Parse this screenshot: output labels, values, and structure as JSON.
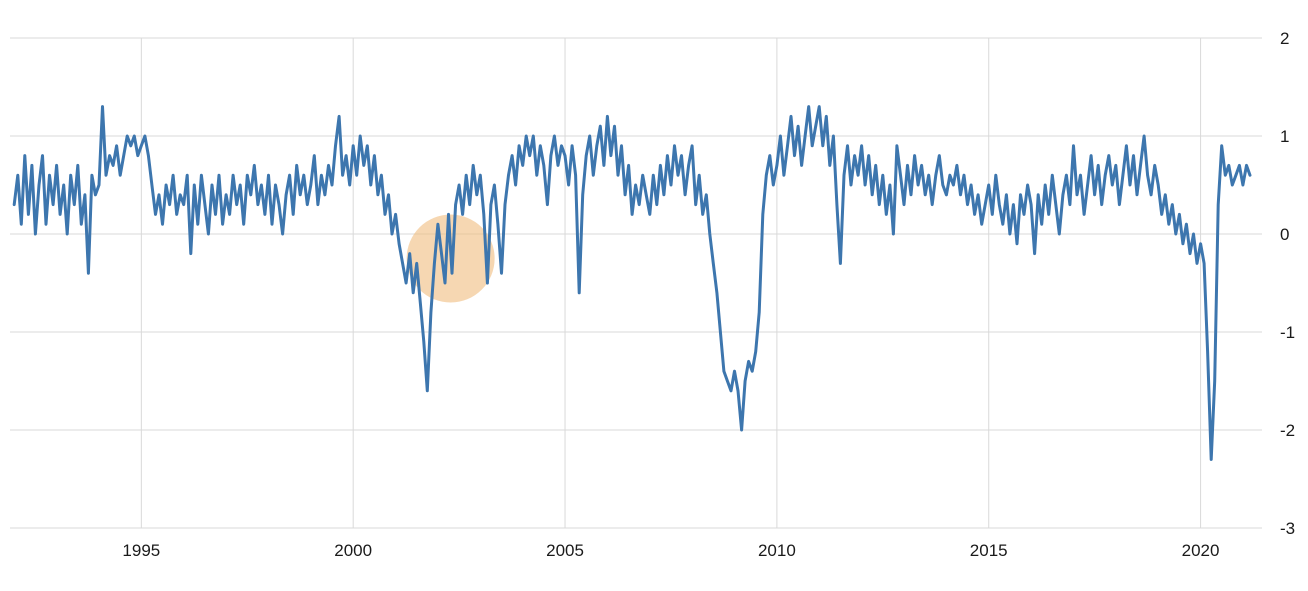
{
  "chart_data": {
    "type": "line",
    "title": "",
    "xlabel": "",
    "ylabel": "",
    "frequency": "monthly",
    "start_year": 1992,
    "start_month": 1,
    "xlim": [
      1991.9,
      2021.45
    ],
    "ylim": [
      -3,
      2
    ],
    "x_tick_labels": [
      "1995",
      "2000",
      "2005",
      "2010",
      "2015",
      "2020"
    ],
    "x_tick_values": [
      1995,
      2000,
      2005,
      2010,
      2015,
      2020
    ],
    "y_tick_labels": [
      "2",
      "1",
      "0",
      "-1",
      "-2",
      "-3"
    ],
    "y_tick_values": [
      2,
      1,
      0,
      -1,
      -2,
      -3
    ],
    "grid": true,
    "legend": false,
    "colors": {
      "line": "#3d76ae",
      "grid": "#d9d9d9",
      "background": "#ffffff",
      "tick_text": "#1a1a1a",
      "highlight": "#f0bc7e"
    },
    "annotations": [
      {
        "type": "highlight-circle",
        "x": 2002.3,
        "y": -0.25,
        "radius_px": 44,
        "color": "#f0bc7e",
        "opacity": 0.6
      }
    ],
    "series": [
      {
        "name": "value",
        "color": "#3d76ae",
        "values": [
          0.3,
          0.6,
          0.1,
          0.8,
          0.2,
          0.7,
          0.0,
          0.5,
          0.8,
          0.1,
          0.6,
          0.3,
          0.7,
          0.2,
          0.5,
          0.0,
          0.6,
          0.3,
          0.7,
          0.1,
          0.4,
          -0.4,
          0.6,
          0.4,
          0.5,
          1.3,
          0.6,
          0.8,
          0.7,
          0.9,
          0.6,
          0.8,
          1.0,
          0.9,
          1.0,
          0.8,
          0.9,
          1.0,
          0.8,
          0.5,
          0.2,
          0.4,
          0.1,
          0.5,
          0.3,
          0.6,
          0.2,
          0.4,
          0.3,
          0.6,
          -0.2,
          0.5,
          0.1,
          0.6,
          0.3,
          0.0,
          0.5,
          0.2,
          0.6,
          0.1,
          0.4,
          0.2,
          0.6,
          0.3,
          0.5,
          0.1,
          0.6,
          0.4,
          0.7,
          0.3,
          0.5,
          0.2,
          0.6,
          0.1,
          0.5,
          0.3,
          0.0,
          0.4,
          0.6,
          0.2,
          0.7,
          0.4,
          0.6,
          0.3,
          0.5,
          0.8,
          0.3,
          0.6,
          0.4,
          0.7,
          0.5,
          0.9,
          1.2,
          0.6,
          0.8,
          0.5,
          0.9,
          0.6,
          1.0,
          0.7,
          0.9,
          0.5,
          0.8,
          0.4,
          0.6,
          0.2,
          0.4,
          0.0,
          0.2,
          -0.1,
          -0.3,
          -0.5,
          -0.2,
          -0.6,
          -0.3,
          -0.7,
          -1.1,
          -1.6,
          -0.8,
          -0.3,
          0.1,
          -0.2,
          -0.5,
          0.2,
          -0.4,
          0.3,
          0.5,
          0.2,
          0.6,
          0.3,
          0.7,
          0.4,
          0.6,
          0.2,
          -0.5,
          0.3,
          0.5,
          0.1,
          -0.4,
          0.3,
          0.6,
          0.8,
          0.5,
          0.9,
          0.7,
          1.0,
          0.8,
          1.0,
          0.6,
          0.9,
          0.7,
          0.3,
          0.8,
          1.0,
          0.7,
          0.9,
          0.8,
          0.5,
          0.9,
          0.6,
          -0.6,
          0.4,
          0.8,
          1.0,
          0.6,
          0.9,
          1.1,
          0.7,
          1.2,
          0.8,
          1.1,
          0.6,
          0.9,
          0.4,
          0.7,
          0.2,
          0.5,
          0.3,
          0.6,
          0.4,
          0.2,
          0.6,
          0.3,
          0.7,
          0.4,
          0.8,
          0.5,
          0.9,
          0.6,
          0.8,
          0.4,
          0.7,
          0.9,
          0.3,
          0.6,
          0.2,
          0.4,
          0.0,
          -0.3,
          -0.6,
          -1.0,
          -1.4,
          -1.5,
          -1.6,
          -1.4,
          -1.6,
          -2.0,
          -1.5,
          -1.3,
          -1.4,
          -1.2,
          -0.8,
          0.2,
          0.6,
          0.8,
          0.5,
          0.7,
          1.0,
          0.6,
          0.9,
          1.2,
          0.8,
          1.1,
          0.7,
          1.0,
          1.3,
          0.9,
          1.1,
          1.3,
          0.9,
          1.2,
          0.7,
          1.0,
          0.3,
          -0.3,
          0.6,
          0.9,
          0.5,
          0.8,
          0.6,
          0.9,
          0.5,
          0.8,
          0.4,
          0.7,
          0.3,
          0.6,
          0.2,
          0.5,
          0.0,
          0.9,
          0.6,
          0.3,
          0.7,
          0.4,
          0.8,
          0.5,
          0.7,
          0.4,
          0.6,
          0.3,
          0.6,
          0.8,
          0.5,
          0.4,
          0.6,
          0.5,
          0.7,
          0.4,
          0.6,
          0.3,
          0.5,
          0.2,
          0.4,
          0.1,
          0.3,
          0.5,
          0.2,
          0.6,
          0.3,
          0.1,
          0.4,
          0.0,
          0.3,
          -0.1,
          0.4,
          0.2,
          0.5,
          0.3,
          -0.2,
          0.4,
          0.1,
          0.5,
          0.2,
          0.6,
          0.3,
          0.0,
          0.4,
          0.6,
          0.3,
          0.9,
          0.4,
          0.6,
          0.2,
          0.5,
          0.8,
          0.4,
          0.7,
          0.3,
          0.6,
          0.8,
          0.5,
          0.7,
          0.3,
          0.6,
          0.9,
          0.5,
          0.8,
          0.4,
          0.7,
          1.0,
          0.6,
          0.4,
          0.7,
          0.5,
          0.2,
          0.4,
          0.1,
          0.3,
          0.0,
          0.2,
          -0.1,
          0.1,
          -0.2,
          0.0,
          -0.3,
          -0.1,
          -0.3,
          -1.2,
          -2.3,
          -1.5,
          0.3,
          0.9,
          0.6,
          0.7,
          0.5,
          0.6,
          0.7,
          0.5,
          0.7,
          0.6
        ]
      }
    ]
  }
}
